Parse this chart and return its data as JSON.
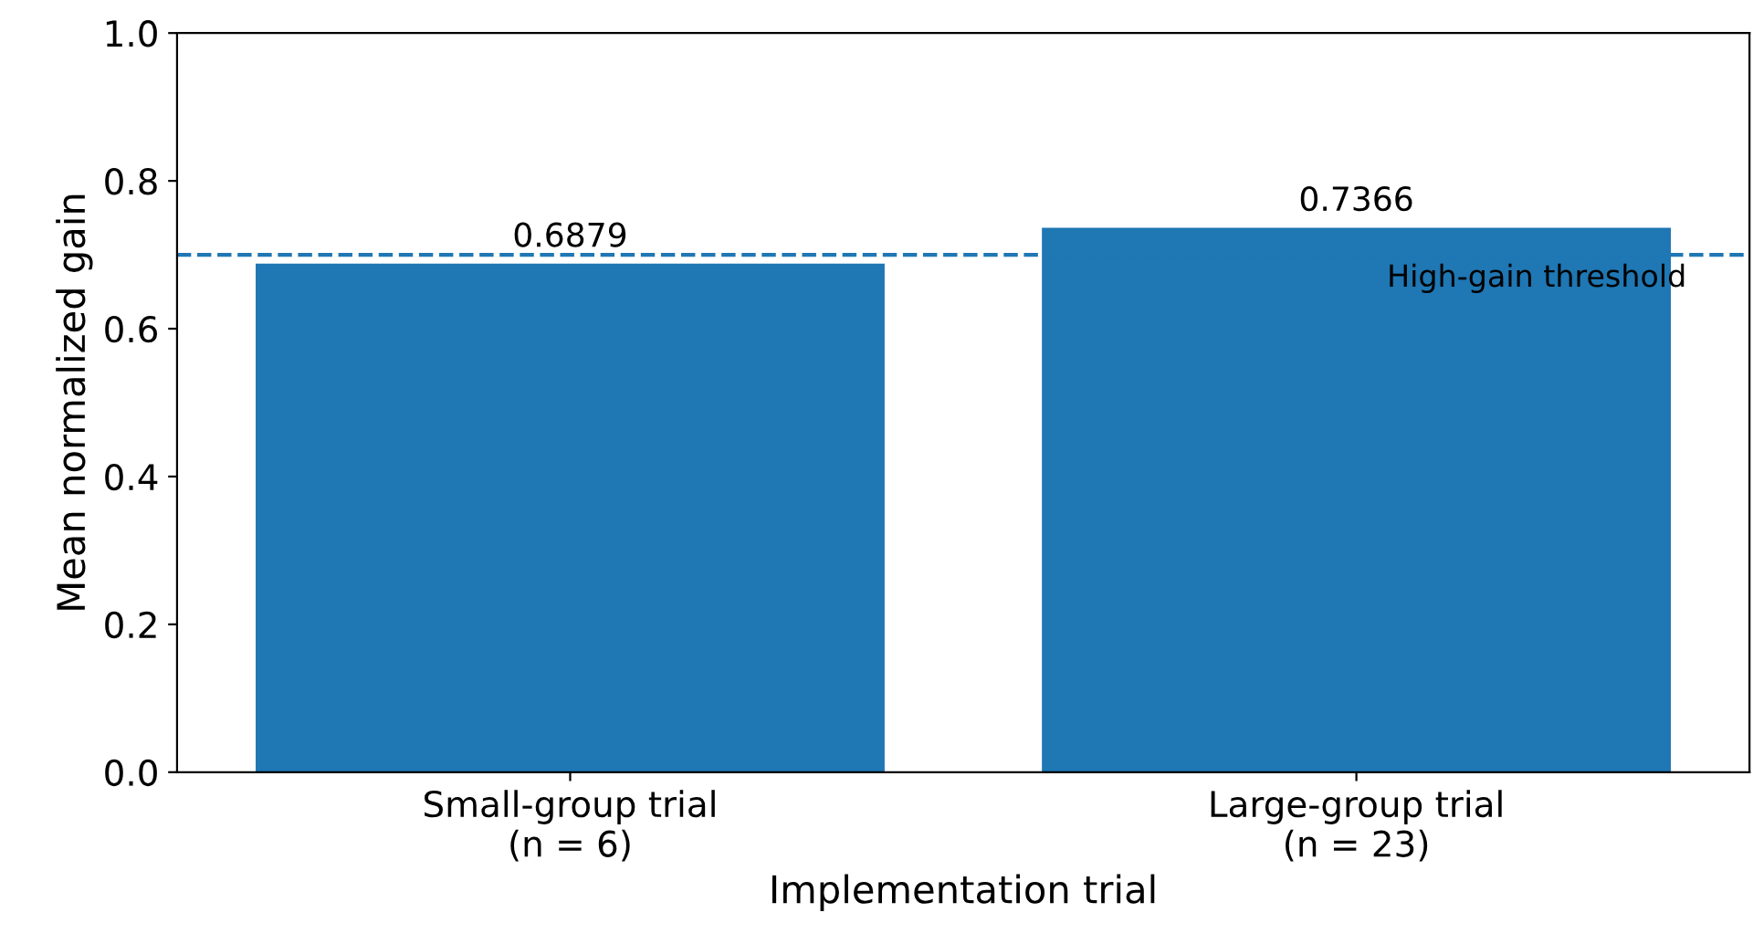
{
  "chart_data": {
    "type": "bar",
    "categories": [
      "Small-group trial\n(n = 6)",
      "Large-group trial\n(n = 23)"
    ],
    "values": [
      0.6879,
      0.7366
    ],
    "value_labels": [
      "0.6879",
      "0.7366"
    ],
    "color": "#1f77b4",
    "xlabel": "Implementation trial",
    "ylabel": "Mean normalized gain",
    "ylim": [
      0,
      1.0
    ],
    "yticks": [
      {
        "value": 0,
        "label": "0.0"
      },
      0.2,
      0.4,
      0.6,
      0.8,
      {
        "value": 1,
        "label": "1.0"
      }
    ],
    "ref_lines": [
      {
        "axis": "y",
        "value": 0.7,
        "label": "High-gain threshold",
        "color": "#1f77b4",
        "line_style": "dashed"
      }
    ],
    "grid": false,
    "legend": false
  }
}
